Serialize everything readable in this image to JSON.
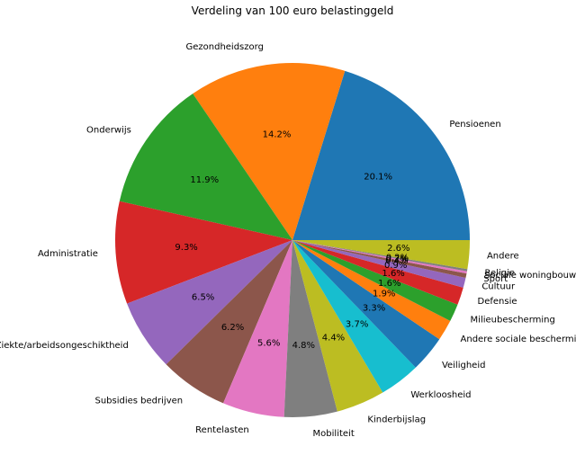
{
  "chart_data": {
    "type": "pie",
    "title": "Verdeling van 100 euro belastinggeld",
    "categories": [
      "Pensioenen",
      "Gezondheidszorg",
      "Onderwijs",
      "Administratie",
      "Ziekte/arbeidsongeschiktheid",
      "Subsidies bedrijven",
      "Rentelasten",
      "Mobiliteit",
      "Kinderbijslag",
      "Werkloosheid",
      "Veiligheid",
      "Andere sociale bescherming",
      "Milieubescherming",
      "Defensie",
      "Cultuur",
      "Sport",
      "Sociale woningbouw",
      "Religie",
      "Andere"
    ],
    "values": [
      20.1,
      14.2,
      11.9,
      9.3,
      6.5,
      6.2,
      5.6,
      4.8,
      4.4,
      3.7,
      3.3,
      1.9,
      1.6,
      1.6,
      0.9,
      0.4,
      0.2,
      0.2,
      2.6
    ],
    "value_labels": [
      "20.1%",
      "14.2%",
      "11.9%",
      "9.3%",
      "6.5%",
      "6.2%",
      "5.6%",
      "4.8%",
      "4.4%",
      "3.7%",
      "3.3%",
      "1.9%",
      "1.6%",
      "1.6%",
      "0.9%",
      "0.4%",
      "0.2%",
      "0.2%",
      "2.6%"
    ],
    "colors": [
      "#1f77b4",
      "#ff7f0e",
      "#2ca02c",
      "#d62728",
      "#9467bd",
      "#8c564b",
      "#e377c2",
      "#7f7f7f",
      "#bcbd22",
      "#17becf",
      "#1f77b4",
      "#ff7f0e",
      "#2ca02c",
      "#d62728",
      "#9467bd",
      "#8c564b",
      "#e377c2",
      "#7f7f7f",
      "#bcbd22"
    ],
    "start_angle_deg": 0,
    "direction": "counterclockwise",
    "legend": "none"
  }
}
